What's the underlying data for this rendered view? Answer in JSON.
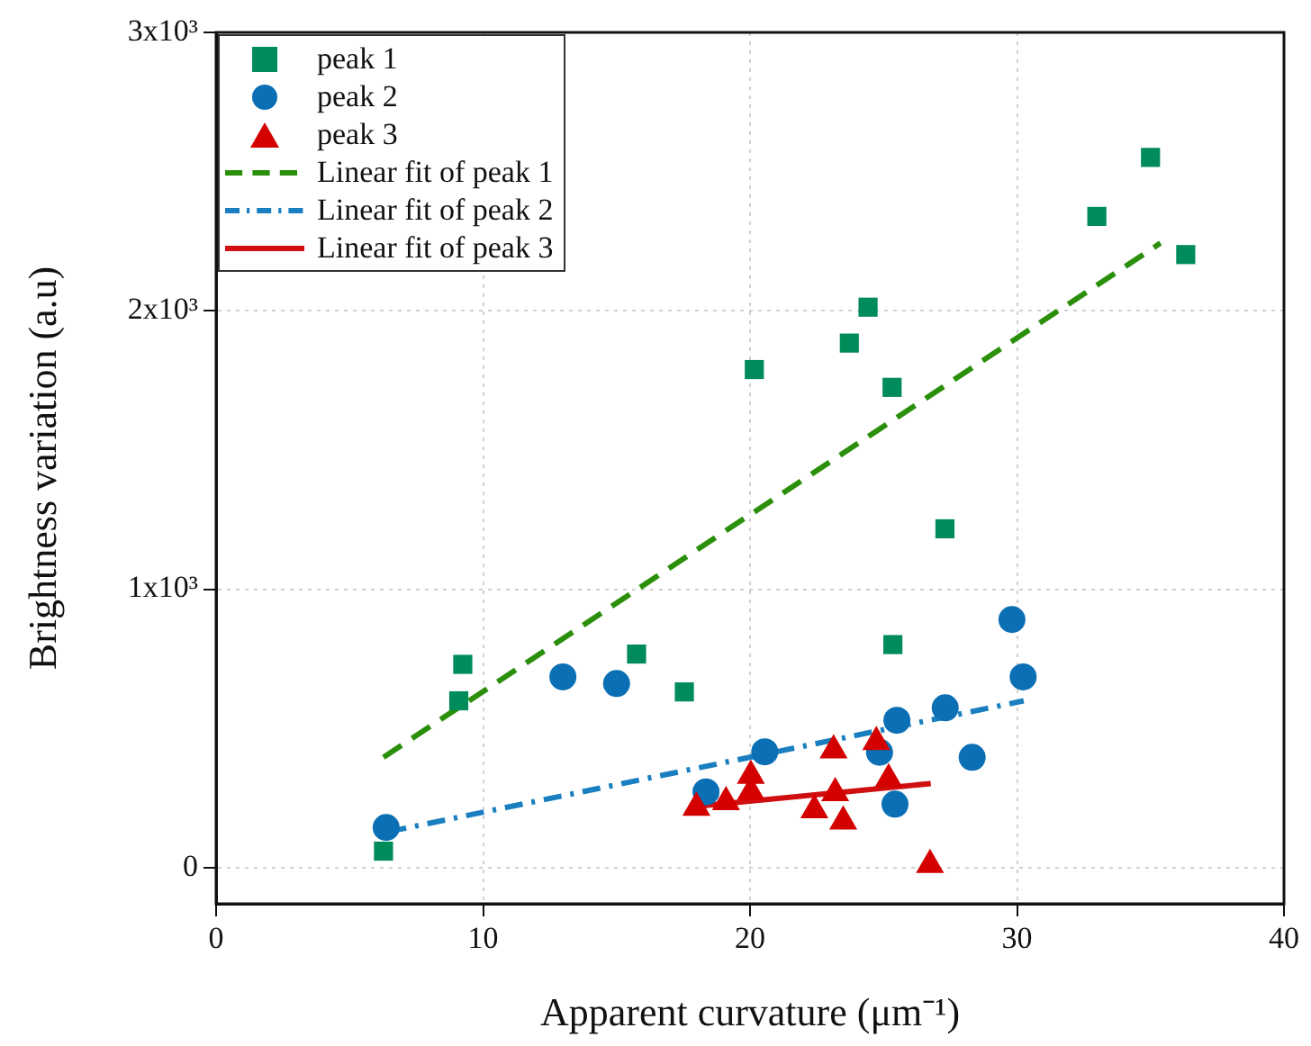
{
  "chart_data": {
    "type": "scatter",
    "xlabel": "Apparent curvature (μm⁻¹)",
    "ylabel": "Brightness variation (a.u)",
    "xlim": [
      0,
      40
    ],
    "xticks": [
      0,
      10,
      20,
      30,
      40
    ],
    "ylim": [
      -130,
      3000
    ],
    "yticks": [
      0,
      {
        "value": 1000,
        "label": "1x10³"
      },
      {
        "value": 2000,
        "label": "2x10³"
      },
      {
        "value": 3000,
        "label": "3x10³"
      }
    ],
    "grid": true,
    "legend": "top left",
    "series": [
      {
        "name": "peak 1",
        "marker": "square",
        "color": "#008c5a",
        "x": [
          6.27,
          9.09,
          9.24,
          15.75,
          17.54,
          25.35,
          27.3,
          20.16,
          23.72,
          24.42,
          25.32,
          32.99,
          35.0,
          36.32
        ],
        "values": [
          59,
          599,
          730,
          767,
          631,
          801,
          1217,
          1789,
          1884,
          2013,
          1725,
          2339,
          2551,
          2202
        ]
      },
      {
        "name": "peak 2",
        "marker": "circle",
        "color": "#0a6fb4",
        "x": [
          6.37,
          12.99,
          15.0,
          18.35,
          20.55,
          24.85,
          25.5,
          25.43,
          27.31,
          28.32,
          29.81,
          30.23
        ],
        "values": [
          144,
          685,
          661,
          272,
          416,
          414,
          529,
          228,
          574,
          396,
          891,
          685
        ]
      },
      {
        "name": "peak 3",
        "marker": "triangle",
        "color": "#d40000",
        "x": [
          17.99,
          19.1,
          20.03,
          20.03,
          22.41,
          23.13,
          23.19,
          23.49,
          24.73,
          25.19,
          26.74
        ],
        "values": [
          215,
          235,
          330,
          272,
          206,
          421,
          268,
          166,
          451,
          317,
          10
        ]
      },
      {
        "name": "Linear fit of peak 1",
        "type": "line",
        "marker": "none",
        "line_style": "dashed",
        "color": "#2a8f0a",
        "x": [
          6.27,
          35.37
        ],
        "values": [
          396,
          2243
        ]
      },
      {
        "name": "Linear fit of peak 2",
        "type": "line",
        "marker": "none",
        "line_style": "dashdot",
        "color": "#1a7fc0",
        "x": [
          6.46,
          30.25
        ],
        "values": [
          129,
          599
        ]
      },
      {
        "name": "Linear fit of peak 3",
        "type": "line",
        "marker": "none",
        "line_style": "solid",
        "color": "#d01010",
        "x": [
          18.0,
          26.77
        ],
        "values": [
          220,
          302
        ]
      }
    ]
  }
}
